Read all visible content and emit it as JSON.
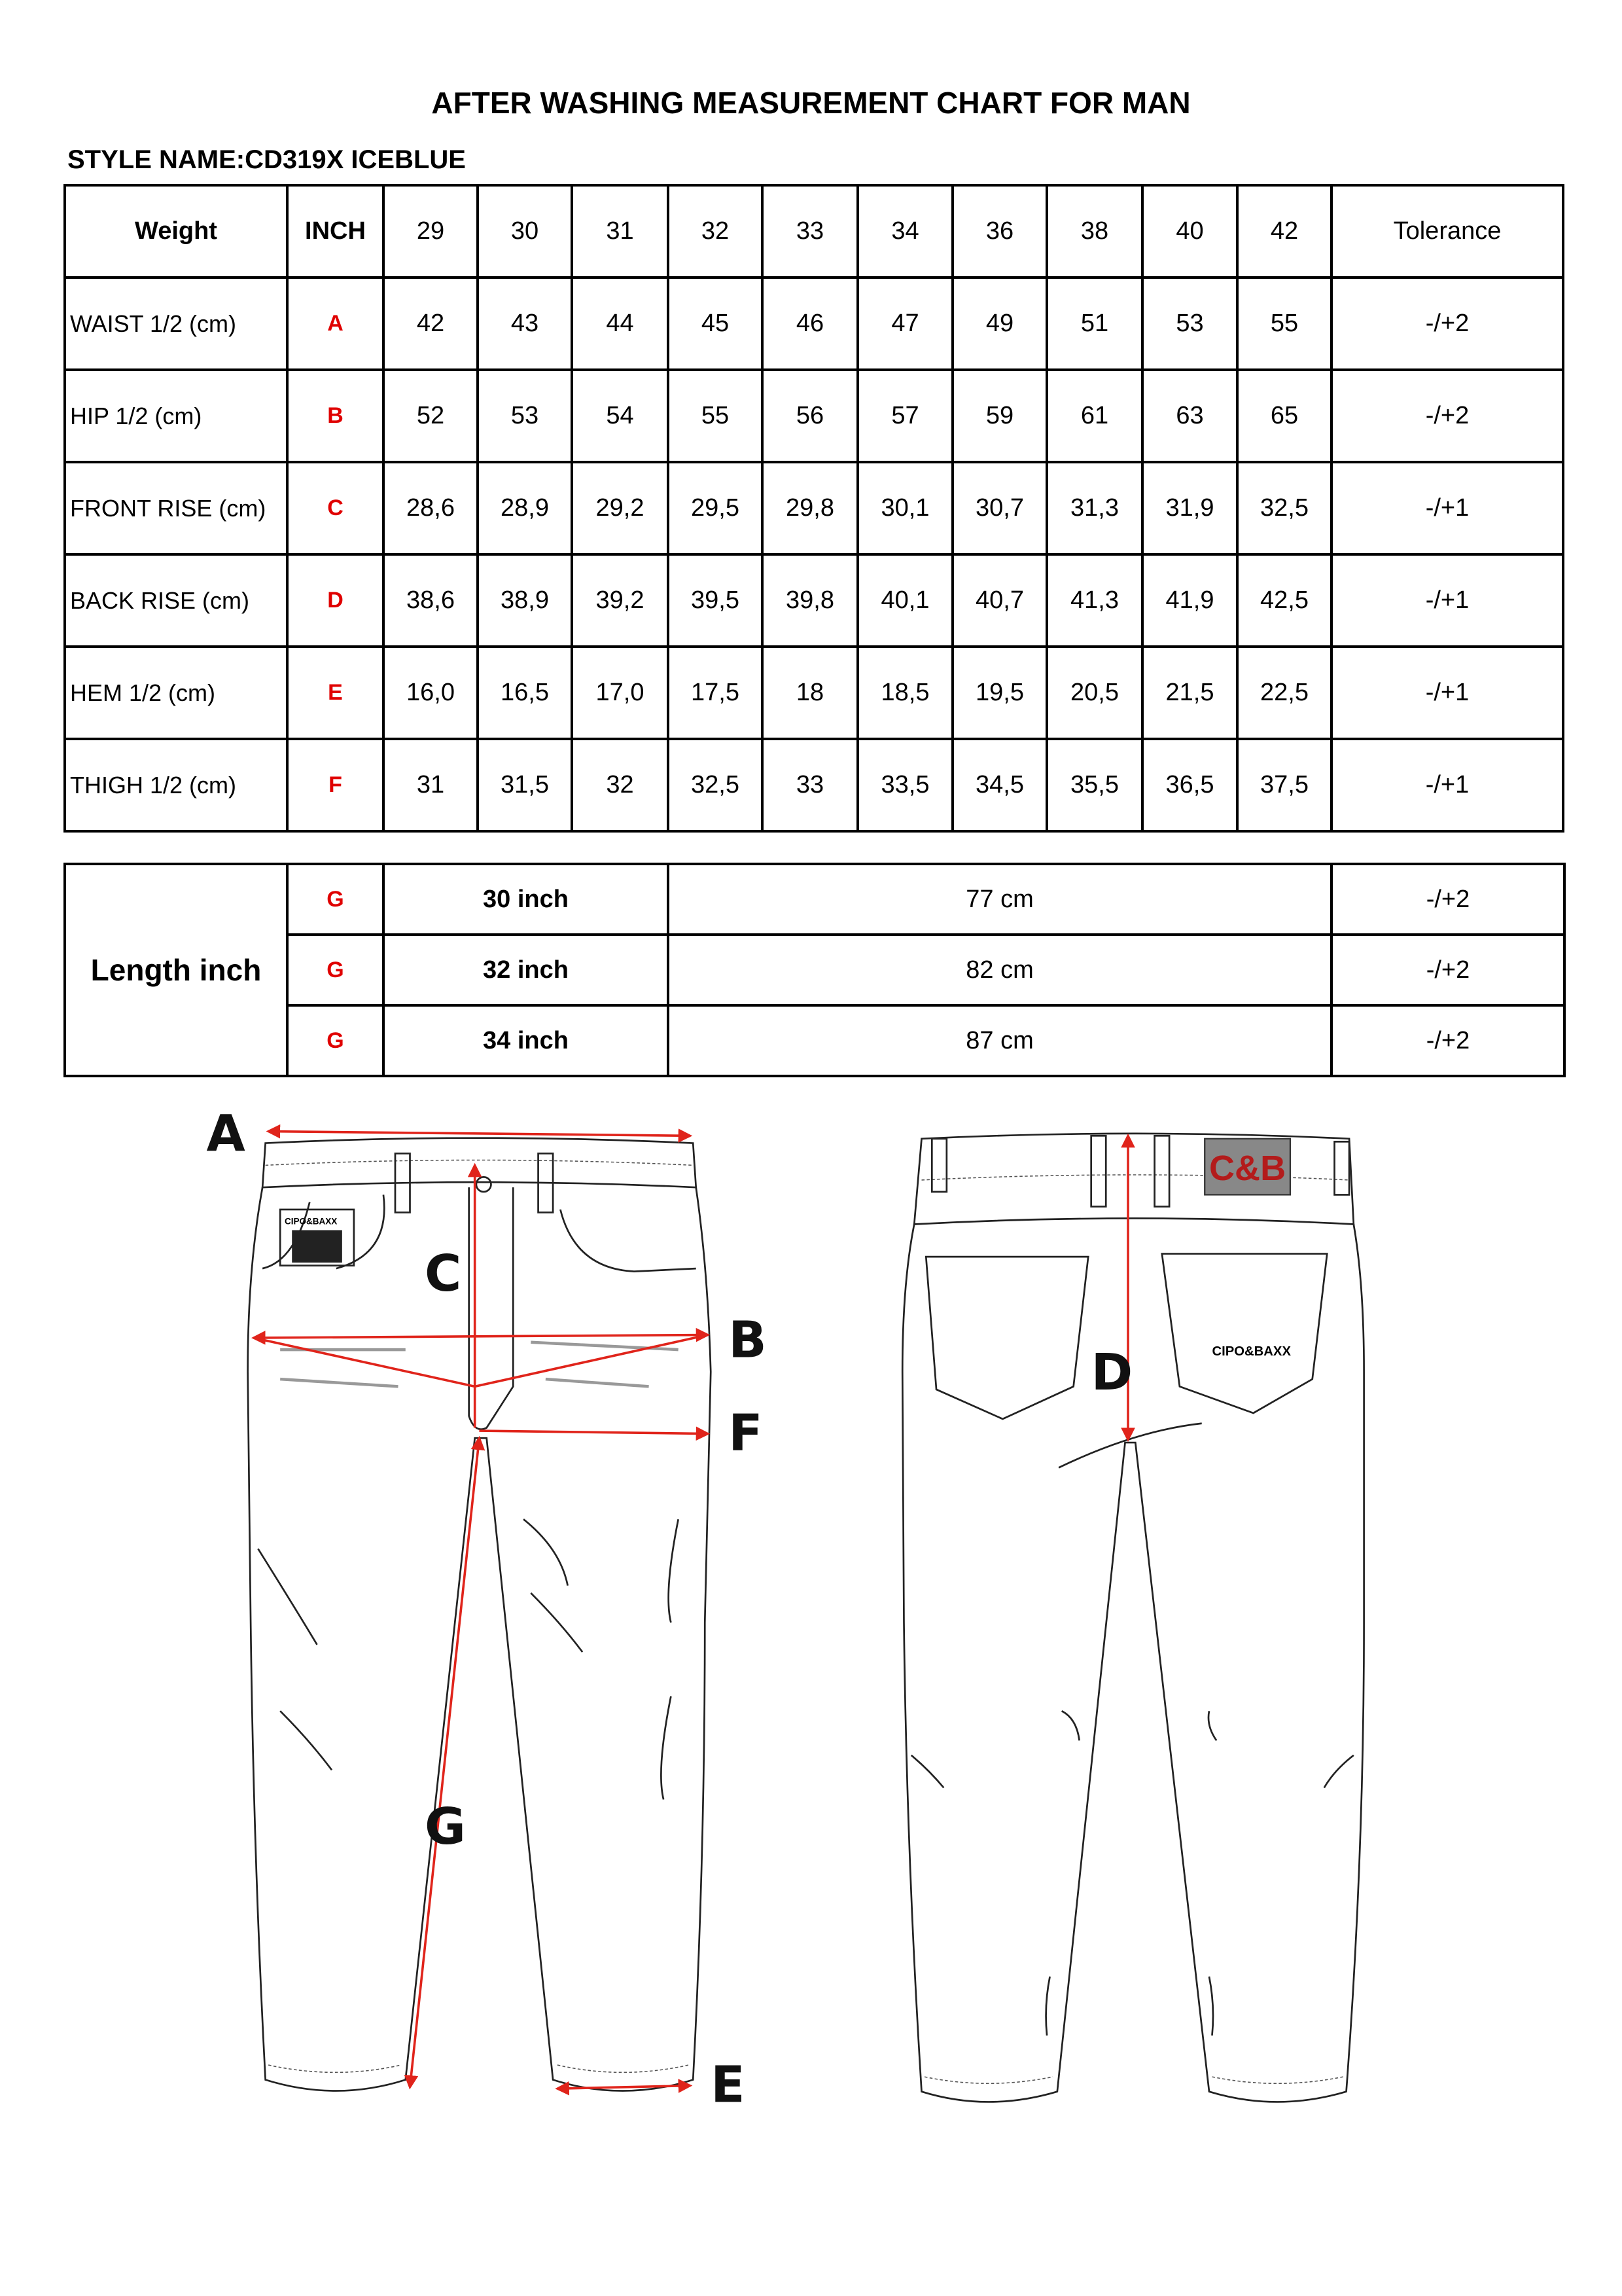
{
  "title": "AFTER WASHING MEASUREMENT CHART FOR MAN",
  "style_name": "STYLE NAME:CD319X ICEBLUE",
  "main_table": {
    "header": {
      "weight": "Weight",
      "inch": "INCH",
      "sizes": [
        "29",
        "30",
        "31",
        "32",
        "33",
        "34",
        "36",
        "38",
        "40",
        "42"
      ],
      "tolerance": "Tolerance"
    },
    "rows": [
      {
        "label": "WAIST 1/2 (cm)",
        "code": "A",
        "values": [
          "42",
          "43",
          "44",
          "45",
          "46",
          "47",
          "49",
          "51",
          "53",
          "55"
        ],
        "tolerance": "-/+2"
      },
      {
        "label": "HIP 1/2 (cm)",
        "code": "B",
        "values": [
          "52",
          "53",
          "54",
          "55",
          "56",
          "57",
          "59",
          "61",
          "63",
          "65"
        ],
        "tolerance": "-/+2"
      },
      {
        "label": "FRONT RISE (cm)",
        "code": "C",
        "values": [
          "28,6",
          "28,9",
          "29,2",
          "29,5",
          "29,8",
          "30,1",
          "30,7",
          "31,3",
          "31,9",
          "32,5"
        ],
        "tolerance": "-/+1"
      },
      {
        "label": "BACK RISE (cm)",
        "code": "D",
        "values": [
          "38,6",
          "38,9",
          "39,2",
          "39,5",
          "39,8",
          "40,1",
          "40,7",
          "41,3",
          "41,9",
          "42,5"
        ],
        "tolerance": "-/+1"
      },
      {
        "label": "HEM 1/2  (cm)",
        "code": "E",
        "values": [
          "16,0",
          "16,5",
          "17,0",
          "17,5",
          "18",
          "18,5",
          "19,5",
          "20,5",
          "21,5",
          "22,5"
        ],
        "tolerance": "-/+1"
      },
      {
        "label": "THIGH 1/2 (cm)",
        "code": "F",
        "values": [
          "31",
          "31,5",
          "32",
          "32,5",
          "33",
          "33,5",
          "34,5",
          "35,5",
          "36,5",
          "37,5"
        ],
        "tolerance": "-/+1"
      }
    ]
  },
  "length_table": {
    "label": "Length inch",
    "rows": [
      {
        "code": "G",
        "inch": "30 inch",
        "cm": "77 cm",
        "tolerance": "-/+2"
      },
      {
        "code": "G",
        "inch": "32 inch",
        "cm": "82 cm",
        "tolerance": "-/+2"
      },
      {
        "code": "G",
        "inch": "34 inch",
        "cm": "87 cm",
        "tolerance": "-/+2"
      }
    ]
  },
  "diagram": {
    "letters": {
      "A": "A",
      "B": "B",
      "C": "C",
      "D": "D",
      "E": "E",
      "F": "F",
      "G": "G"
    },
    "front_patch_text": "CIPO&BAXX",
    "back_label": "C&B",
    "back_pocket_text": "CIPO&BAXX",
    "measure_color": "#e0241b"
  }
}
